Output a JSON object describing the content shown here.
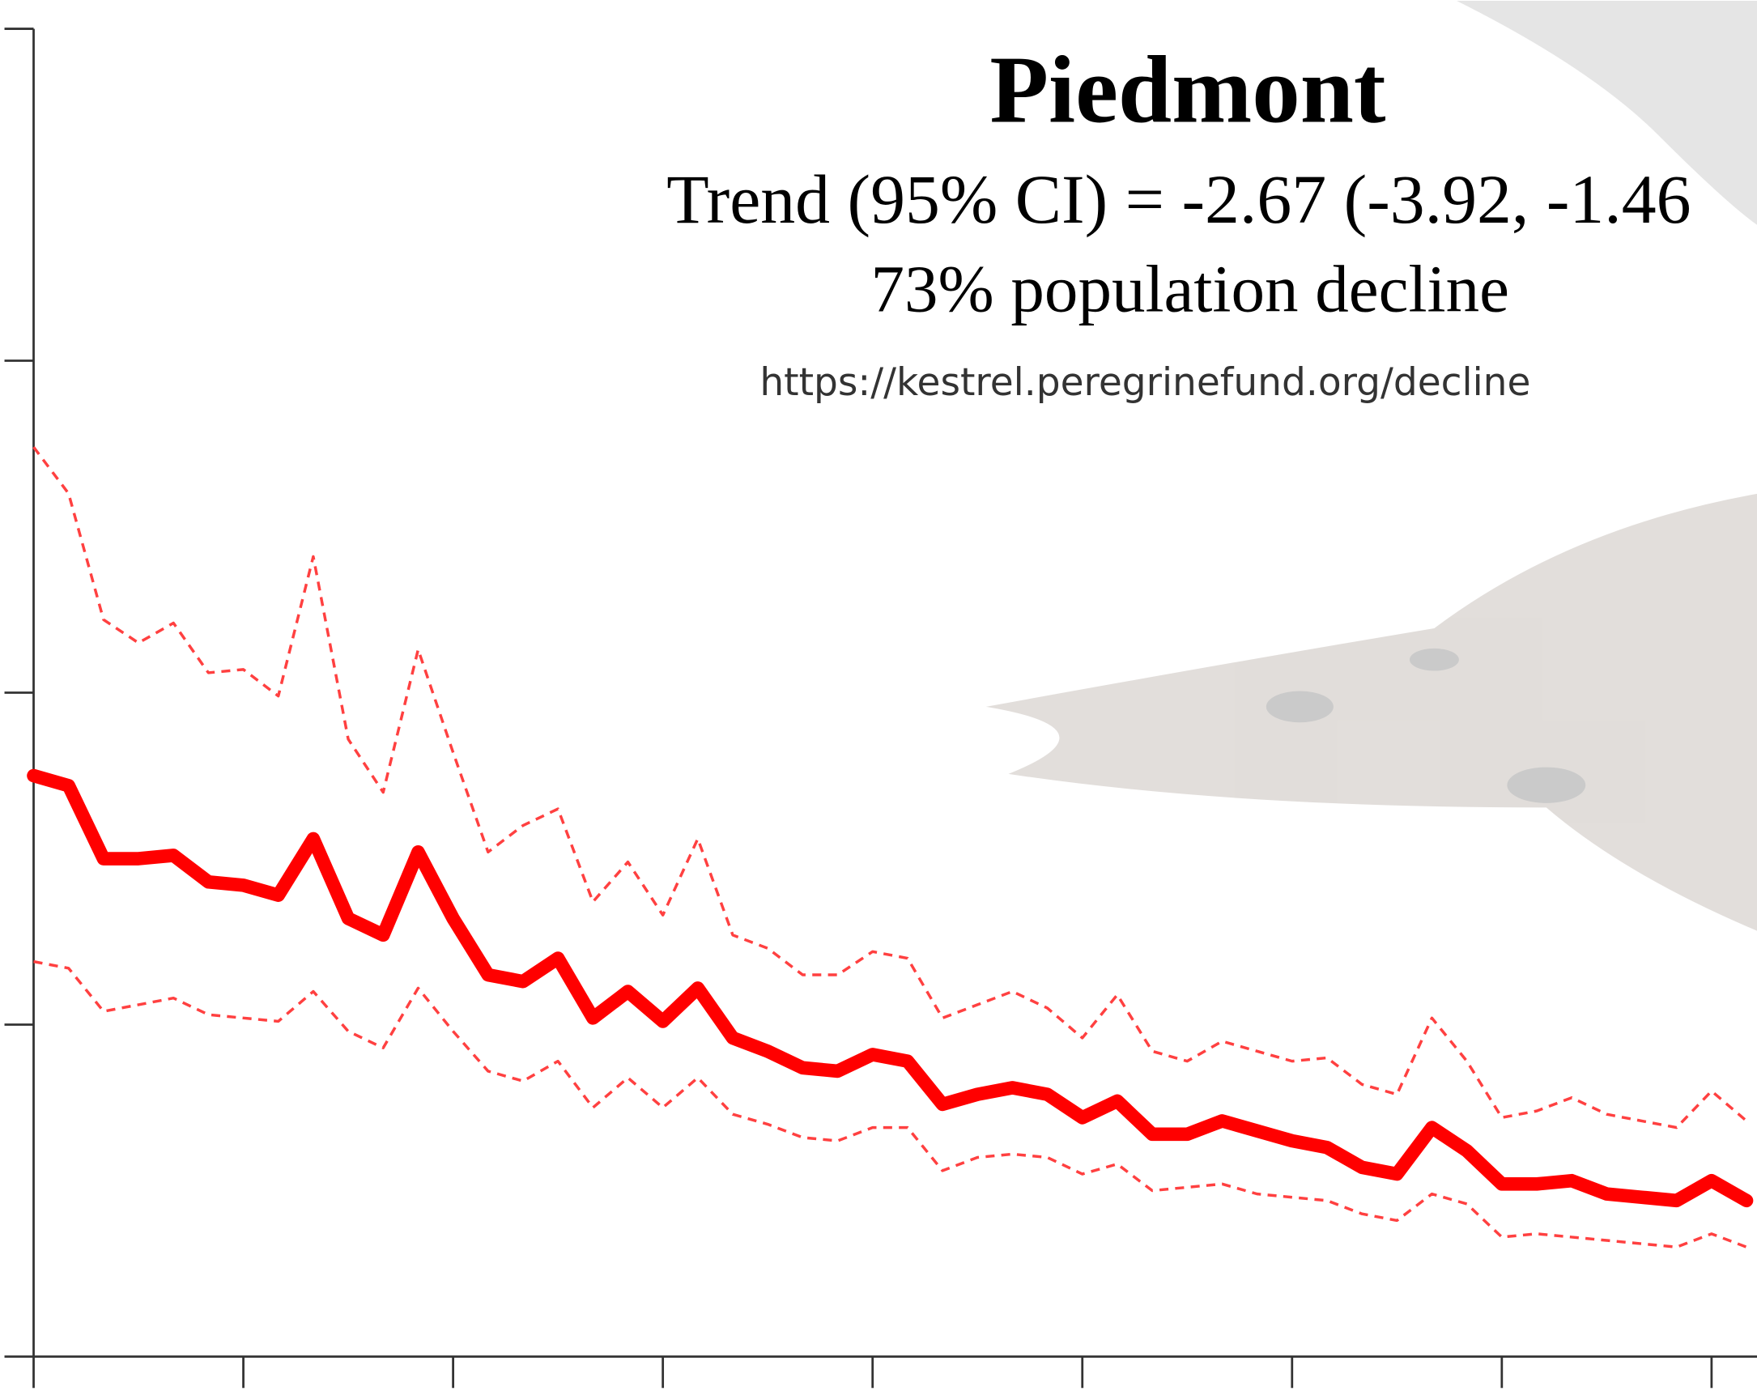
{
  "chart_data": {
    "type": "line",
    "title": "Piedmont",
    "annotations": [
      "Trend (95% CI) = -2.67 (-3.92, -1.46",
      "73% population decline",
      "https://kestrel.peregrinefund.org/decline"
    ],
    "x": [
      0,
      1,
      2,
      3,
      4,
      5,
      6,
      7,
      8,
      9,
      10,
      11,
      12,
      13,
      14,
      15,
      16,
      17,
      18,
      19,
      20,
      21,
      22,
      23,
      24,
      25,
      26,
      27,
      28,
      29,
      30,
      31,
      32,
      33,
      34,
      35,
      36,
      37,
      38,
      39,
      40,
      41,
      42,
      43,
      44,
      45,
      46,
      47,
      48,
      49
    ],
    "xlim": [
      0,
      49.3
    ],
    "xticks": [
      0,
      6,
      12,
      18,
      24,
      30,
      36,
      42,
      48
    ],
    "ylim": [
      0,
      4
    ],
    "yticks": [
      0,
      1,
      2,
      3,
      4
    ],
    "series": [
      {
        "color": "#ff0000",
        "dashed": false,
        "values": [
          1.75,
          1.72,
          1.5,
          1.5,
          1.51,
          1.43,
          1.42,
          1.39,
          1.56,
          1.32,
          1.27,
          1.52,
          1.32,
          1.15,
          1.13,
          1.2,
          1.02,
          1.1,
          1.01,
          1.11,
          0.96,
          0.92,
          0.87,
          0.86,
          0.91,
          0.89,
          0.76,
          0.79,
          0.81,
          0.79,
          0.72,
          0.77,
          0.67,
          0.67,
          0.71,
          0.68,
          0.65,
          0.63,
          0.57,
          0.55,
          0.69,
          0.62,
          0.52,
          0.52,
          0.53,
          0.49,
          0.48,
          0.47,
          0.53,
          0.47
        ]
      },
      {
        "color": "#ff4040",
        "dashed": true,
        "values": [
          2.74,
          2.6,
          2.22,
          2.15,
          2.21,
          2.06,
          2.07,
          1.99,
          2.41,
          1.86,
          1.7,
          2.13,
          1.82,
          1.52,
          1.6,
          1.65,
          1.37,
          1.49,
          1.33,
          1.56,
          1.27,
          1.23,
          1.15,
          1.15,
          1.22,
          1.2,
          1.02,
          1.06,
          1.1,
          1.05,
          0.96,
          1.09,
          0.92,
          0.89,
          0.95,
          0.92,
          0.89,
          0.9,
          0.82,
          0.79,
          1.02,
          0.89,
          0.72,
          0.74,
          0.78,
          0.73,
          0.71,
          0.69,
          0.8,
          0.71
        ]
      },
      {
        "color": "#ff4040",
        "dashed": true,
        "values": [
          1.19,
          1.17,
          1.04,
          1.06,
          1.08,
          1.03,
          1.02,
          1.01,
          1.1,
          0.98,
          0.93,
          1.11,
          0.98,
          0.86,
          0.83,
          0.89,
          0.75,
          0.84,
          0.75,
          0.84,
          0.73,
          0.7,
          0.66,
          0.65,
          0.69,
          0.69,
          0.56,
          0.6,
          0.61,
          0.6,
          0.55,
          0.58,
          0.5,
          0.51,
          0.52,
          0.49,
          0.48,
          0.47,
          0.43,
          0.41,
          0.49,
          0.46,
          0.36,
          0.37,
          0.36,
          0.35,
          0.34,
          0.33,
          0.37,
          0.33
        ]
      }
    ]
  }
}
